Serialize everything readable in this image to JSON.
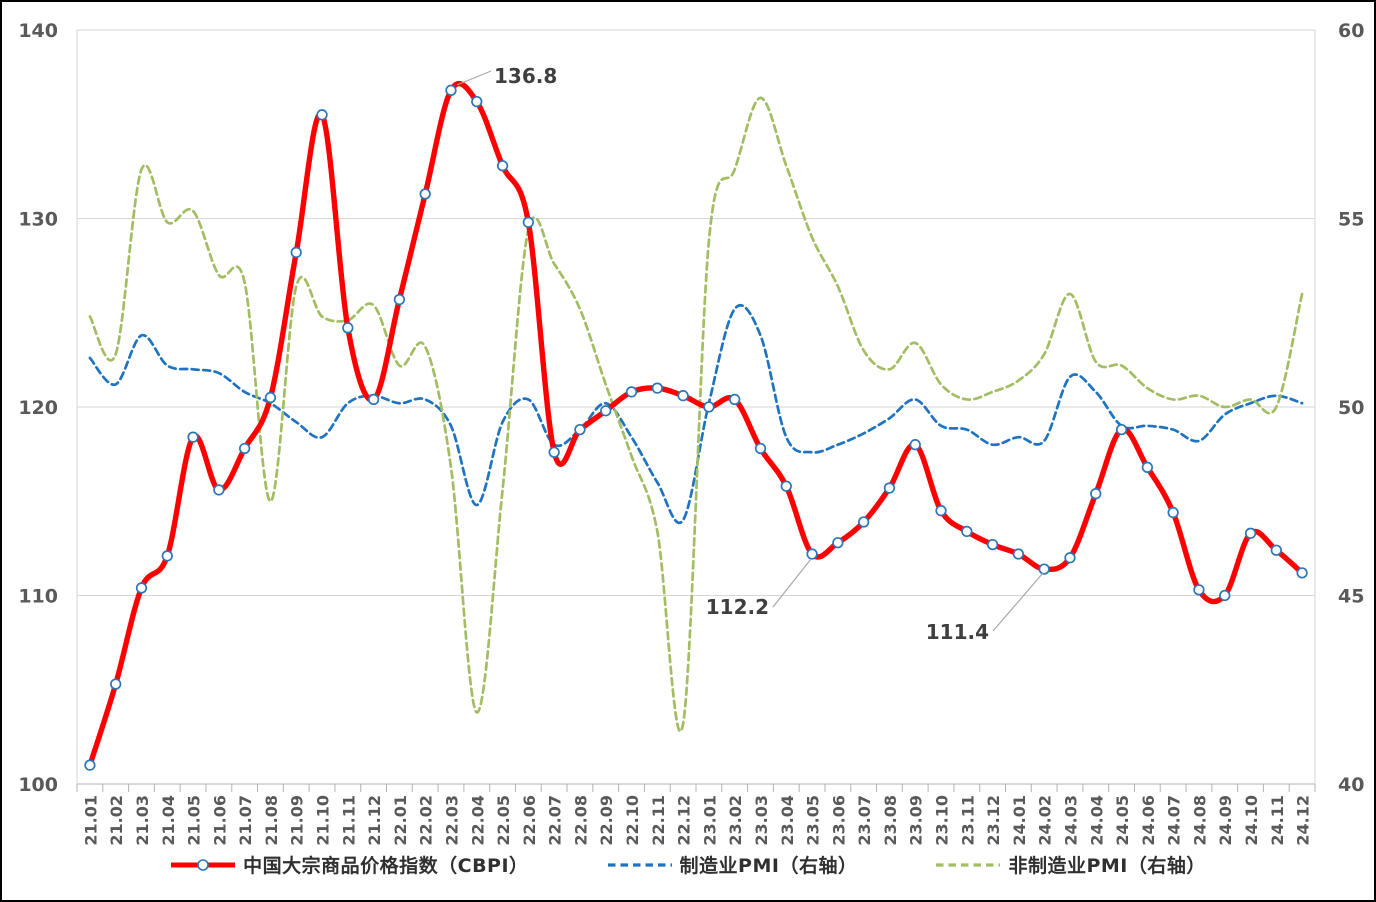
{
  "chart_data": {
    "type": "line",
    "title": "",
    "legend_position": "bottom",
    "gridlines": "horizontal",
    "categories": [
      "21.01",
      "21.02",
      "21.03",
      "21.04",
      "21.05",
      "21.06",
      "21.07",
      "21.08",
      "21.09",
      "21.10",
      "21.11",
      "21.12",
      "22.01",
      "22.02",
      "22.03",
      "22.04",
      "22.05",
      "22.06",
      "22.07",
      "22.08",
      "22.09",
      "22.10",
      "22.11",
      "22.12",
      "23.01",
      "23.02",
      "23.03",
      "23.04",
      "23.05",
      "23.06",
      "23.07",
      "23.08",
      "23.09",
      "23.10",
      "23.11",
      "23.12",
      "24.01",
      "24.02",
      "24.03",
      "24.04",
      "24.05",
      "24.06",
      "24.07",
      "24.08",
      "24.09",
      "24.10",
      "24.11",
      "24.12"
    ],
    "left_axis": {
      "min": 100,
      "max": 140,
      "ticks": [
        100,
        110,
        120,
        130,
        140
      ]
    },
    "right_axis": {
      "min": 40,
      "max": 60,
      "ticks": [
        40,
        45,
        50,
        55,
        60
      ]
    },
    "series": [
      {
        "name": "中国大宗商品价格指数（CBPI）",
        "axis": "left",
        "color": "#fe0000",
        "line_style": "solid",
        "line_width": 5.4,
        "marker": {
          "shape": "circle",
          "fill": "#ffffff",
          "stroke": "#2e75b6"
        },
        "values": [
          101.0,
          105.3,
          110.4,
          112.1,
          118.4,
          115.6,
          117.8,
          120.5,
          128.2,
          135.5,
          124.2,
          120.4,
          125.7,
          131.3,
          136.8,
          136.2,
          132.8,
          129.8,
          117.6,
          118.8,
          119.8,
          120.8,
          121.0,
          120.6,
          120.0,
          120.4,
          117.8,
          115.8,
          112.2,
          112.8,
          113.9,
          115.7,
          118.0,
          114.5,
          113.4,
          112.7,
          112.2,
          111.4,
          112.0,
          115.4,
          118.8,
          116.8,
          114.4,
          110.3,
          110.0,
          113.3,
          112.4,
          111.2
        ]
      },
      {
        "name": "制造业PMI（右轴）",
        "axis": "right",
        "color": "#1f73c0",
        "line_style": "dashed",
        "line_width": 2.7,
        "values": [
          51.3,
          50.6,
          51.9,
          51.1,
          51.0,
          50.9,
          50.4,
          50.1,
          49.6,
          49.2,
          50.1,
          50.3,
          50.1,
          50.2,
          49.5,
          47.4,
          49.6,
          50.2,
          49.0,
          49.4,
          50.1,
          49.2,
          48.0,
          47.0,
          50.1,
          52.6,
          51.9,
          49.2,
          48.8,
          49.0,
          49.3,
          49.7,
          50.2,
          49.5,
          49.4,
          49.0,
          49.2,
          49.1,
          50.8,
          50.4,
          49.5,
          49.5,
          49.4,
          49.1,
          49.8,
          50.1,
          50.3,
          50.1
        ]
      },
      {
        "name": "非制造业PMI（右轴）",
        "axis": "right",
        "color": "#a2bd62",
        "line_style": "dashed",
        "line_width": 2.7,
        "values": [
          52.4,
          51.4,
          56.3,
          54.9,
          55.2,
          53.5,
          53.3,
          47.5,
          53.2,
          52.4,
          52.3,
          52.7,
          51.1,
          51.6,
          48.4,
          41.9,
          47.8,
          54.7,
          53.8,
          52.6,
          50.6,
          48.7,
          46.7,
          41.6,
          54.4,
          56.3,
          58.2,
          56.4,
          54.5,
          53.2,
          51.5,
          51.0,
          51.7,
          50.6,
          50.2,
          50.4,
          50.7,
          51.4,
          53.0,
          51.2,
          51.1,
          50.5,
          50.2,
          50.3,
          50.0,
          50.2,
          50.0,
          53.0
        ]
      }
    ],
    "annotations": [
      {
        "text": "136.8",
        "series": "中国大宗商品价格指数（CBPI）",
        "category": "22.03"
      },
      {
        "text": "112.2",
        "series": "中国大宗商品价格指数（CBPI）",
        "category": "23.05"
      },
      {
        "text": "111.4",
        "series": "中国大宗商品价格指数（CBPI）",
        "category": "24.02"
      }
    ]
  },
  "colors": {
    "axis_text": "#595959",
    "gridline": "#d6d6d6",
    "axis_line": "#b3b3b3",
    "annotation_text": "#3f3f3f",
    "leader_line": "#a8a8a8",
    "background": "#ffffff",
    "border": "#000000"
  }
}
